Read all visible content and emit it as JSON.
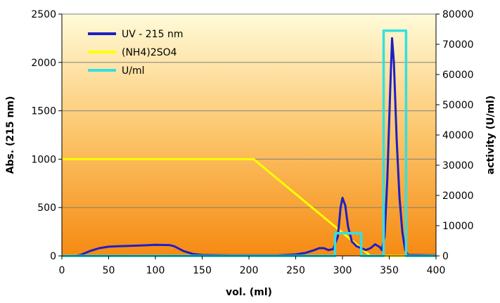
{
  "chart_data": {
    "type": "line",
    "xlabel": "vol. (ml)",
    "ylabel": "Abs. (215 nm)",
    "y2label": "activity (U/ml)",
    "xlim": [
      0,
      400
    ],
    "ylim": [
      0,
      2500
    ],
    "y2lim": [
      0,
      80000
    ],
    "x_ticks": [
      "0",
      "50",
      "100",
      "150",
      "200",
      "250",
      "300",
      "350",
      "400"
    ],
    "y_ticks": [
      "0",
      "500",
      "1000",
      "1500",
      "2000",
      "2500"
    ],
    "y2_ticks": [
      "0",
      "10000",
      "20000",
      "30000",
      "40000",
      "50000",
      "60000",
      "70000",
      "80000"
    ],
    "grid": "horizontal",
    "background": "orange-to-light-yellow vertical gradient",
    "legend_position": "top-left",
    "series": [
      {
        "name": "UV - 215 nm",
        "axis": "left",
        "color": "#1f1fc4",
        "points": [
          [
            0,
            0
          ],
          [
            15,
            0
          ],
          [
            20,
            10
          ],
          [
            25,
            30
          ],
          [
            30,
            50
          ],
          [
            40,
            80
          ],
          [
            50,
            95
          ],
          [
            60,
            100
          ],
          [
            75,
            105
          ],
          [
            90,
            110
          ],
          [
            100,
            115
          ],
          [
            115,
            112
          ],
          [
            120,
            100
          ],
          [
            130,
            50
          ],
          [
            140,
            20
          ],
          [
            150,
            10
          ],
          [
            180,
            5
          ],
          [
            210,
            5
          ],
          [
            230,
            5
          ],
          [
            250,
            15
          ],
          [
            260,
            30
          ],
          [
            270,
            60
          ],
          [
            275,
            80
          ],
          [
            280,
            80
          ],
          [
            285,
            60
          ],
          [
            290,
            70
          ],
          [
            295,
            200
          ],
          [
            298,
            500
          ],
          [
            300,
            600
          ],
          [
            303,
            520
          ],
          [
            306,
            300
          ],
          [
            310,
            150
          ],
          [
            315,
            100
          ],
          [
            320,
            80
          ],
          [
            325,
            60
          ],
          [
            330,
            80
          ],
          [
            335,
            120
          ],
          [
            340,
            90
          ],
          [
            342,
            60
          ],
          [
            345,
            200
          ],
          [
            348,
            800
          ],
          [
            351,
            1700
          ],
          [
            353,
            2250
          ],
          [
            355,
            2000
          ],
          [
            358,
            1200
          ],
          [
            361,
            600
          ],
          [
            364,
            250
          ],
          [
            367,
            60
          ],
          [
            370,
            10
          ],
          [
            400,
            5
          ]
        ]
      },
      {
        "name": "(NH4)2SO4",
        "axis": "left",
        "color": "#ffff00",
        "points": [
          [
            0,
            1000
          ],
          [
            205,
            1000
          ],
          [
            330,
            0
          ],
          [
            400,
            0
          ]
        ]
      },
      {
        "name": "U/ml",
        "axis": "right",
        "color": "#33e0e0",
        "points": [
          [
            0,
            0
          ],
          [
            292,
            0
          ],
          [
            292,
            7500
          ],
          [
            320,
            7500
          ],
          [
            320,
            0
          ],
          [
            344,
            0
          ],
          [
            344,
            74500
          ],
          [
            368,
            74500
          ],
          [
            368,
            0
          ],
          [
            400,
            0
          ]
        ]
      }
    ]
  }
}
